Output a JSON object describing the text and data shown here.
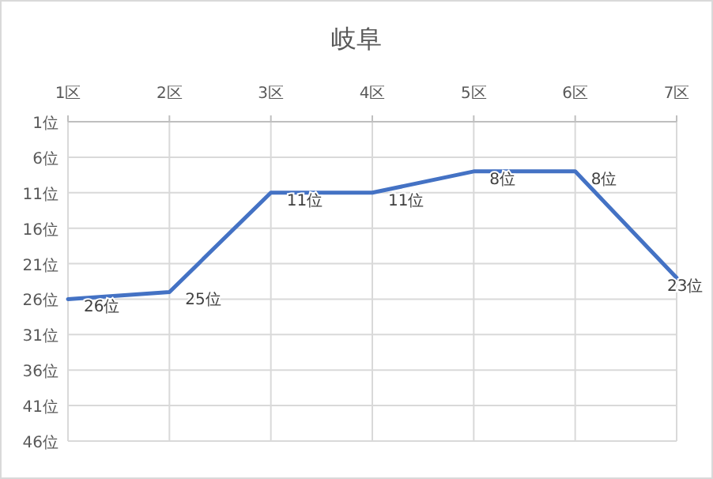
{
  "chart_data": {
    "type": "line",
    "title": "岐阜",
    "categories": [
      "1区",
      "2区",
      "3区",
      "4区",
      "5区",
      "6区",
      "7区"
    ],
    "series": [
      {
        "color": "#4472c4",
        "values": [
          26,
          25,
          11,
          11,
          8,
          8,
          23
        ],
        "value_labels": [
          "26位",
          "25位",
          "11位",
          "11位",
          "8位",
          "8位",
          "23位"
        ]
      }
    ],
    "ylim": [
      46,
      1
    ],
    "yticks": [
      {
        "value": 1,
        "label": "1位"
      },
      {
        "value": 6,
        "label": "6位"
      },
      {
        "value": 11,
        "label": "11位"
      },
      {
        "value": 16,
        "label": "16位"
      },
      {
        "value": 21,
        "label": "21位"
      },
      {
        "value": 26,
        "label": "26位"
      },
      {
        "value": 31,
        "label": "31位"
      },
      {
        "value": 36,
        "label": "36位"
      },
      {
        "value": 41,
        "label": "41位"
      },
      {
        "value": 46,
        "label": "46位"
      }
    ],
    "grid": true,
    "marker": "none",
    "line_style": "solid"
  }
}
